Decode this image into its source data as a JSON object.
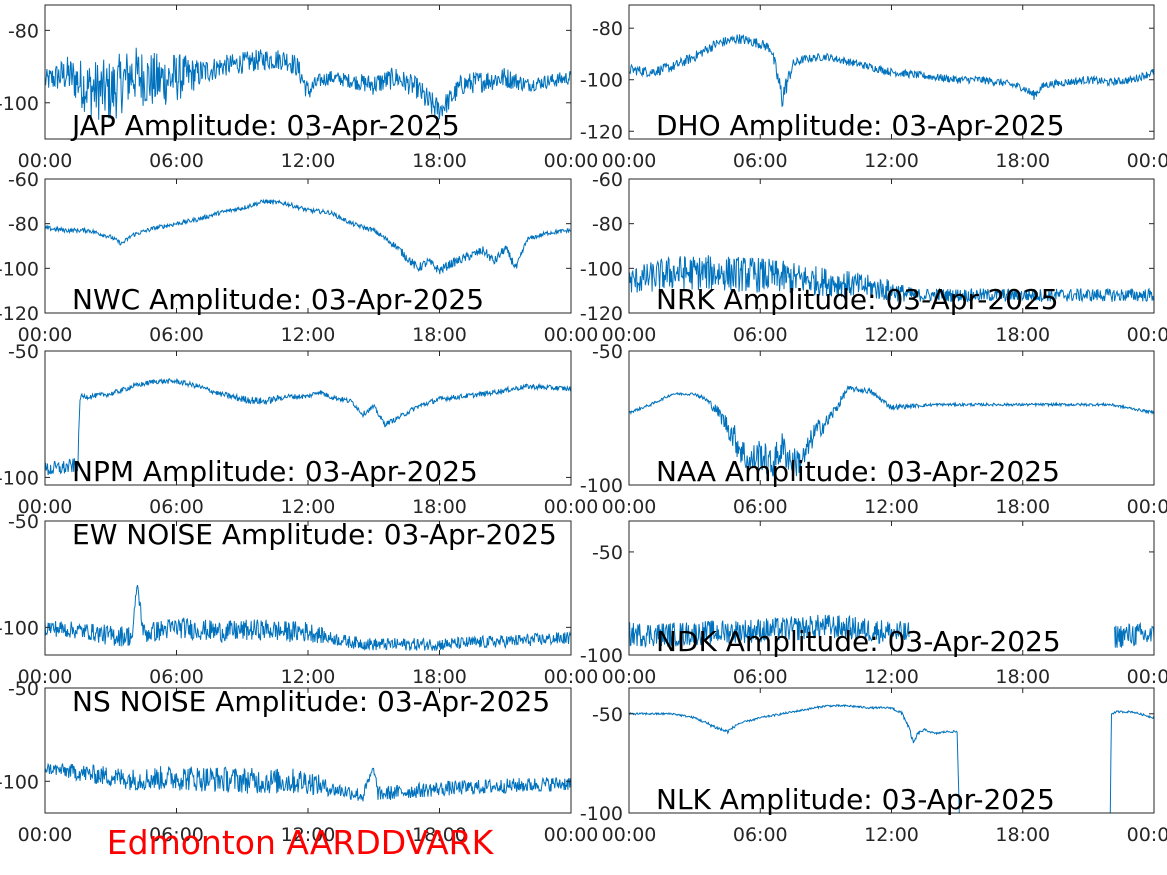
{
  "footer": {
    "text": "Edmonton AARDDVARK",
    "color": "#ff0000"
  },
  "line_color": "#0072bd",
  "x_tick_labels": [
    "00:00",
    "06:00",
    "12:00",
    "18:00",
    "00:00"
  ],
  "chart_data": [
    {
      "type": "line",
      "title": "JAP Amplitude: 03-Apr-2025",
      "xlabel": "",
      "ylabel": "",
      "xlim": [
        0,
        24
      ],
      "ylim": [
        -110,
        -73
      ],
      "yticks": [
        -80,
        -100
      ],
      "ytick_labels": [
        "-80",
        "-100"
      ],
      "series": [
        {
          "x": [
            0,
            1,
            2,
            3,
            4,
            5,
            6,
            7,
            8,
            9,
            10,
            11,
            11.5,
            12,
            12.5,
            13,
            14,
            15,
            16,
            17,
            17.5,
            18,
            18.5,
            19,
            20,
            21,
            22,
            23,
            24
          ],
          "y": [
            -94,
            -92,
            -96,
            -97,
            -92,
            -94,
            -93,
            -92,
            -90,
            -89,
            -88,
            -88,
            -90,
            -97,
            -94,
            -93,
            -94,
            -95,
            -93,
            -96,
            -100,
            -102,
            -99,
            -95,
            -94,
            -93,
            -95,
            -94,
            -93
          ],
          "noise": [
            3,
            5,
            8,
            9,
            8,
            8,
            7,
            4,
            3,
            3,
            3,
            3,
            3,
            3,
            2,
            2,
            2,
            3,
            3,
            3,
            4,
            3,
            3,
            3,
            3,
            3,
            2,
            2,
            2
          ]
        }
      ]
    },
    {
      "type": "line",
      "title": "DHO Amplitude: 03-Apr-2025",
      "xlabel": "",
      "ylabel": "",
      "xlim": [
        0,
        24
      ],
      "ylim": [
        -123,
        -71
      ],
      "yticks": [
        -80,
        -100,
        -120
      ],
      "ytick_labels": [
        "-80",
        "-100",
        "-120"
      ],
      "series": [
        {
          "x": [
            0,
            1,
            2,
            3,
            4,
            5,
            6,
            6.5,
            7,
            7.5,
            8,
            9,
            10,
            11,
            12,
            13,
            14,
            15,
            16,
            17,
            18,
            18.5,
            19,
            20,
            21,
            22,
            23,
            24
          ],
          "y": [
            -96,
            -97,
            -95,
            -91,
            -86,
            -84,
            -86,
            -88,
            -107,
            -94,
            -92,
            -91,
            -93,
            -95,
            -97,
            -98,
            -99,
            -100,
            -100,
            -101,
            -103,
            -106,
            -102,
            -101,
            -100,
            -101,
            -100,
            -97
          ],
          "noise": [
            2,
            2,
            2,
            2,
            2,
            2,
            2,
            2,
            5,
            2,
            1.5,
            1.5,
            1.5,
            1.5,
            1.5,
            1.5,
            1.5,
            1.5,
            1.5,
            1.5,
            1.5,
            2,
            1.5,
            1.5,
            1.5,
            1.5,
            1.5,
            1.5
          ]
        }
      ]
    },
    {
      "type": "line",
      "title": "NWC Amplitude: 03-Apr-2025",
      "xlabel": "",
      "ylabel": "",
      "xlim": [
        0,
        24
      ],
      "ylim": [
        -120,
        -60
      ],
      "yticks": [
        -60,
        -80,
        -100,
        -120
      ],
      "ytick_labels": [
        "-60",
        "-80",
        "-100",
        "-120"
      ],
      "series": [
        {
          "x": [
            0,
            1,
            2,
            3,
            3.5,
            4,
            5,
            6,
            7,
            8,
            9,
            10,
            11,
            12,
            13,
            14,
            15,
            16,
            16.5,
            17,
            17.5,
            18,
            18.5,
            19,
            20,
            20.5,
            21,
            21.5,
            22,
            23,
            24
          ],
          "y": [
            -82,
            -83,
            -83,
            -86,
            -89,
            -85,
            -82,
            -80,
            -78,
            -75,
            -73,
            -70,
            -71,
            -74,
            -75,
            -80,
            -83,
            -90,
            -95,
            -100,
            -97,
            -101,
            -98,
            -96,
            -92,
            -97,
            -91,
            -100,
            -87,
            -84,
            -83
          ],
          "noise": [
            1,
            1,
            1,
            1,
            1,
            1,
            1,
            1,
            1,
            1,
            1,
            1,
            1,
            1,
            1,
            1,
            1,
            1.5,
            2,
            2,
            2,
            2,
            2,
            2,
            2,
            2,
            2,
            2,
            1,
            1,
            1
          ]
        }
      ]
    },
    {
      "type": "line",
      "title": "NRK Amplitude: 03-Apr-2025",
      "xlabel": "",
      "ylabel": "",
      "xlim": [
        0,
        24
      ],
      "ylim": [
        -120,
        -60
      ],
      "yticks": [
        -60,
        -80,
        -100,
        -120
      ],
      "ytick_labels": [
        "-60",
        "-80",
        "-100",
        "-120"
      ],
      "series": [
        {
          "x": [
            0,
            2,
            4,
            6,
            8,
            10,
            12,
            13,
            14,
            16,
            18,
            20,
            22,
            24
          ],
          "y": [
            -106,
            -102,
            -102,
            -103,
            -105,
            -107,
            -110,
            -112,
            -112,
            -112,
            -112,
            -112,
            -112,
            -112
          ],
          "noise": [
            6,
            8,
            8,
            8,
            7,
            6,
            5,
            3,
            3,
            3,
            3,
            3,
            3,
            3
          ]
        }
      ]
    },
    {
      "type": "line",
      "title": "NPM Amplitude: 03-Apr-2025",
      "xlabel": "",
      "ylabel": "",
      "xlim": [
        0,
        24
      ],
      "ylim": [
        -103,
        -50
      ],
      "yticks": [
        -50,
        -100
      ],
      "ytick_labels": [
        "-50",
        "-100"
      ],
      "series": [
        {
          "x": [
            0,
            1,
            1.5,
            1.6,
            2,
            3,
            4,
            5,
            6,
            7,
            8,
            9,
            10,
            11,
            12,
            12.5,
            13,
            14,
            14.5,
            15,
            15.5,
            16,
            17,
            18,
            20,
            22,
            24
          ],
          "y": [
            -97,
            -96,
            -95,
            -68,
            -68,
            -67,
            -64,
            -62,
            -62,
            -64,
            -67,
            -69,
            -70,
            -68,
            -68,
            -66,
            -68,
            -70,
            -75,
            -72,
            -79,
            -77,
            -72,
            -69,
            -67,
            -64,
            -65
          ],
          "noise": [
            3,
            3,
            3,
            1,
            1,
            1,
            1,
            1,
            1,
            1,
            1,
            1.5,
            1.5,
            1,
            1,
            1,
            1,
            1,
            1,
            1,
            1,
            1,
            1,
            1,
            1,
            1,
            1
          ]
        }
      ]
    },
    {
      "type": "line",
      "title": "NAA Amplitude: 03-Apr-2025",
      "xlabel": "",
      "ylabel": "",
      "xlim": [
        0,
        24
      ],
      "ylim": [
        -100,
        -50
      ],
      "yticks": [
        -50,
        -100
      ],
      "ytick_labels": [
        "-50",
        "-100"
      ],
      "series": [
        {
          "x": [
            0,
            1,
            2,
            3,
            3.5,
            4,
            4.5,
            5,
            5.5,
            6,
            6.5,
            7,
            7.5,
            8,
            8.5,
            9,
            9.5,
            10,
            11,
            12,
            14,
            16,
            18,
            20,
            22,
            24
          ],
          "y": [
            -73,
            -70,
            -66,
            -66,
            -68,
            -72,
            -78,
            -85,
            -92,
            -88,
            -93,
            -86,
            -92,
            -90,
            -80,
            -77,
            -71,
            -64,
            -65,
            -71,
            -70,
            -70,
            -70,
            -70,
            -70,
            -73
          ],
          "noise": [
            0.5,
            0.5,
            0.5,
            0.5,
            1,
            2,
            4,
            6,
            6,
            6,
            6,
            6,
            6,
            5,
            4,
            3,
            2,
            1,
            1,
            1,
            0.5,
            0.5,
            0.5,
            0.5,
            0.5,
            0.5
          ]
        }
      ]
    },
    {
      "type": "line",
      "title": "EW NOISE Amplitude: 03-Apr-2025",
      "xlabel": "",
      "ylabel": "",
      "xlim": [
        0,
        24
      ],
      "ylim": [
        -113,
        -50
      ],
      "yticks": [
        -50,
        -100
      ],
      "ytick_labels": [
        "-50",
        "-100"
      ],
      "series": [
        {
          "x": [
            0,
            2,
            3,
            4,
            4.2,
            4.5,
            6,
            8,
            10,
            11,
            12,
            13,
            14,
            15,
            16,
            18,
            20,
            22,
            24
          ],
          "y": [
            -100,
            -102,
            -104,
            -104,
            -79,
            -103,
            -100,
            -102,
            -101,
            -102,
            -102,
            -105,
            -107,
            -108,
            -108,
            -108,
            -107,
            -106,
            -105
          ],
          "noise": [
            4,
            4,
            5,
            5,
            2,
            5,
            5,
            5,
            5,
            5,
            5,
            3,
            3,
            3,
            3,
            3,
            3,
            3,
            3
          ]
        }
      ]
    },
    {
      "type": "line",
      "title": "NDK Amplitude: 03-Apr-2025",
      "xlabel": "",
      "ylabel": "",
      "xlim": [
        0,
        24
      ],
      "ylim": [
        -100,
        -35
      ],
      "yticks": [
        -50,
        -100
      ],
      "ytick_labels": [
        "-50",
        "-100"
      ],
      "series": [
        {
          "x": [
            0,
            2,
            4,
            6,
            8,
            9,
            10,
            11,
            12,
            12.8
          ],
          "y": [
            -90,
            -90,
            -89,
            -88,
            -87,
            -86,
            -87,
            -88,
            -89,
            -90
          ],
          "noise": [
            6,
            6,
            6,
            6,
            6,
            6,
            6,
            6,
            6,
            6
          ]
        },
        {
          "x": [
            22.2,
            23,
            24
          ],
          "y": [
            -91,
            -90,
            -91
          ],
          "noise": [
            6,
            6,
            6
          ]
        }
      ]
    },
    {
      "type": "line",
      "title": "NS NOISE Amplitude: 03-Apr-2025",
      "xlabel": "",
      "ylabel": "",
      "xlim": [
        0,
        24
      ],
      "ylim": [
        -117,
        -50
      ],
      "yticks": [
        -50,
        -100
      ],
      "ytick_labels": [
        "-50",
        "-100"
      ],
      "series": [
        {
          "x": [
            0,
            2,
            4,
            6,
            8,
            10,
            12,
            13,
            14,
            14.5,
            15,
            15.2,
            16,
            18,
            20,
            22,
            24
          ],
          "y": [
            -93,
            -96,
            -99,
            -98,
            -99,
            -100,
            -100,
            -104,
            -106,
            -108,
            -93,
            -107,
            -106,
            -104,
            -103,
            -102,
            -101
          ],
          "noise": [
            3,
            5,
            6,
            7,
            7,
            7,
            7,
            4,
            4,
            4,
            2,
            4,
            4,
            4,
            4,
            4,
            4
          ]
        }
      ]
    },
    {
      "type": "line",
      "title": "NLK Amplitude: 03-Apr-2025",
      "xlabel": "",
      "ylabel": "",
      "xlim": [
        0,
        24
      ],
      "ylim": [
        -100,
        -37
      ],
      "yticks": [
        -50,
        -100
      ],
      "ytick_labels": [
        "-50",
        "-100"
      ],
      "series": [
        {
          "x": [
            0,
            2,
            3,
            4,
            4.5,
            5,
            6,
            7,
            8,
            9,
            10,
            11,
            12,
            12.5,
            12.8,
            13,
            13.2,
            13.5,
            14,
            14.5,
            15
          ],
          "y": [
            -50,
            -50,
            -52,
            -57,
            -59,
            -55,
            -52,
            -50,
            -48,
            -46,
            -46,
            -47,
            -47,
            -50,
            -57,
            -65,
            -60,
            -58,
            -60,
            -59,
            -59
          ],
          "noise": [
            0.5,
            0.5,
            0.5,
            1,
            1,
            0.5,
            0.5,
            0.5,
            0.5,
            0.5,
            0.5,
            0.5,
            0.5,
            1,
            1,
            1,
            1,
            0.5,
            0.5,
            0.5,
            0.5
          ]
        },
        {
          "x": [
            15,
            15.1
          ],
          "y": [
            -59,
            -100
          ],
          "noise": [
            0,
            0
          ]
        },
        {
          "x": [
            22,
            22.05,
            22.3,
            23,
            24
          ],
          "y": [
            -100,
            -50,
            -49,
            -49,
            -52
          ],
          "noise": [
            0,
            0.5,
            0.5,
            0.5,
            0.5
          ]
        }
      ]
    }
  ]
}
